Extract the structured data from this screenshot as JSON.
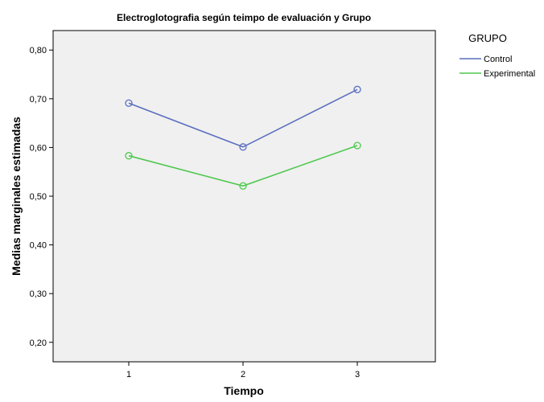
{
  "chart_data": {
    "type": "line",
    "title": "Electroglotografia según teimpo de evaluación y Grupo",
    "xlabel": "Tiempo",
    "ylabel": "Medias marginales estimadas",
    "categories": [
      "1",
      "2",
      "3"
    ],
    "ylim": [
      0.16,
      0.84
    ],
    "yticks": [
      0.2,
      0.3,
      0.4,
      0.5,
      0.6,
      0.7,
      0.8
    ],
    "ytick_labels": [
      "0,20",
      "0,30",
      "0,40",
      "0,50",
      "0,60",
      "0,70",
      "0,80"
    ],
    "legend_title": "GRUPO",
    "legend_position": "right",
    "grid": false,
    "plot_background": "#f0f0f0",
    "series": [
      {
        "name": "Control",
        "color": "#5b6fbf",
        "values": [
          0.691,
          0.601,
          0.719
        ]
      },
      {
        "name": "Experimental",
        "color": "#4fc84f",
        "values": [
          0.583,
          0.521,
          0.604
        ]
      }
    ]
  }
}
